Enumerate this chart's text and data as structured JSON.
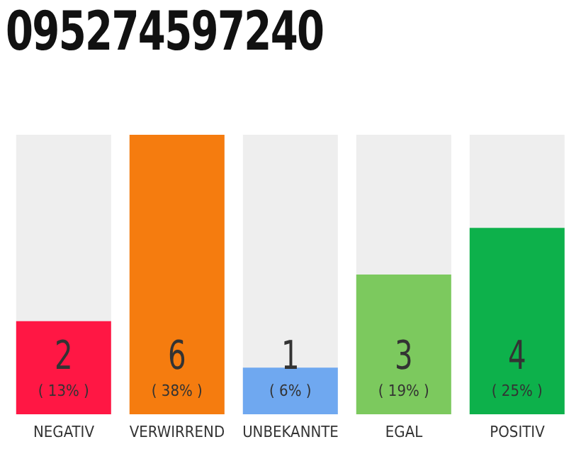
{
  "chart_data": {
    "type": "bar",
    "title": "095274597240",
    "categories": [
      "NEGATIV",
      "VERWIRREND",
      "UNBEKANNTE",
      "EGAL",
      "POSITIV"
    ],
    "values": [
      2,
      6,
      1,
      3,
      4
    ],
    "colors": [
      "#ff1744",
      "#f57c0f",
      "#6fa8f0",
      "#7cc95e",
      "#0db14b"
    ],
    "ylim": [
      0,
      6
    ],
    "tick_labels": "x",
    "grid": false,
    "legend": false,
    "data_labels": true,
    "annotations": [
      "( 13% )",
      "( 38% )",
      "( 6% )",
      "( 19% )",
      "( 25% )"
    ]
  }
}
